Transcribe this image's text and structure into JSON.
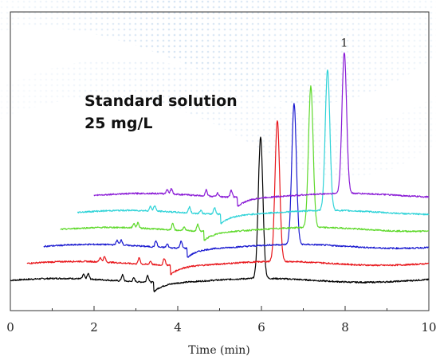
{
  "chart_data": {
    "type": "line",
    "title": "",
    "xlabel": "Time (min)",
    "ylabel": "",
    "xlim": [
      0,
      10
    ],
    "ylim": [
      0,
      1.15
    ],
    "x_ticks": [
      0,
      2,
      4,
      6,
      8,
      10
    ],
    "x_tick_labels": [
      "0",
      "2",
      "4",
      "6",
      "8",
      "10"
    ],
    "grid": false,
    "legend": "none",
    "annotation": {
      "line1": "Standard solution",
      "line2": "25 mg/L"
    },
    "peak_label": "1",
    "series": [
      {
        "color": "#000000",
        "x_start": 0.0,
        "baseline": 0.0,
        "peak_time": 5.98,
        "peak_height": 0.58,
        "noise_events": [
          [
            1.75,
            0.018
          ],
          [
            1.86,
            0.022
          ],
          [
            2.68,
            0.025
          ],
          [
            2.95,
            0.014
          ],
          [
            3.28,
            0.028
          ],
          [
            3.42,
            -0.04
          ]
        ]
      },
      {
        "color": "#e8161b",
        "x_start": 0.4,
        "baseline": 0.07,
        "peak_time": 6.38,
        "peak_height": 0.58,
        "noise_events": [
          [
            2.15,
            0.018
          ],
          [
            2.25,
            0.022
          ],
          [
            3.08,
            0.025
          ],
          [
            3.35,
            0.014
          ],
          [
            3.68,
            0.028
          ],
          [
            3.82,
            -0.04
          ]
        ]
      },
      {
        "color": "#1b1bd0",
        "x_start": 0.8,
        "baseline": 0.14,
        "peak_time": 6.78,
        "peak_height": 0.58,
        "noise_events": [
          [
            2.55,
            0.018
          ],
          [
            2.65,
            0.022
          ],
          [
            3.48,
            0.025
          ],
          [
            3.75,
            0.014
          ],
          [
            4.08,
            0.028
          ],
          [
            4.22,
            -0.04
          ]
        ]
      },
      {
        "color": "#5fd92c",
        "x_start": 1.2,
        "baseline": 0.21,
        "peak_time": 7.18,
        "peak_height": 0.58,
        "noise_events": [
          [
            2.95,
            0.018
          ],
          [
            3.05,
            0.022
          ],
          [
            3.88,
            0.025
          ],
          [
            4.15,
            0.014
          ],
          [
            4.48,
            0.028
          ],
          [
            4.62,
            -0.04
          ]
        ]
      },
      {
        "color": "#2fd3d8",
        "x_start": 1.6,
        "baseline": 0.28,
        "peak_time": 7.58,
        "peak_height": 0.58,
        "noise_events": [
          [
            3.35,
            0.018
          ],
          [
            3.45,
            0.022
          ],
          [
            4.28,
            0.025
          ],
          [
            4.55,
            0.014
          ],
          [
            4.88,
            0.028
          ],
          [
            5.02,
            -0.04
          ]
        ]
      },
      {
        "color": "#8a1bd6",
        "x_start": 2.0,
        "baseline": 0.35,
        "peak_time": 7.98,
        "peak_height": 0.58,
        "noise_events": [
          [
            3.75,
            0.018
          ],
          [
            3.85,
            0.022
          ],
          [
            4.68,
            0.025
          ],
          [
            4.95,
            0.014
          ],
          [
            5.28,
            0.028
          ],
          [
            5.42,
            -0.04
          ]
        ]
      }
    ]
  }
}
